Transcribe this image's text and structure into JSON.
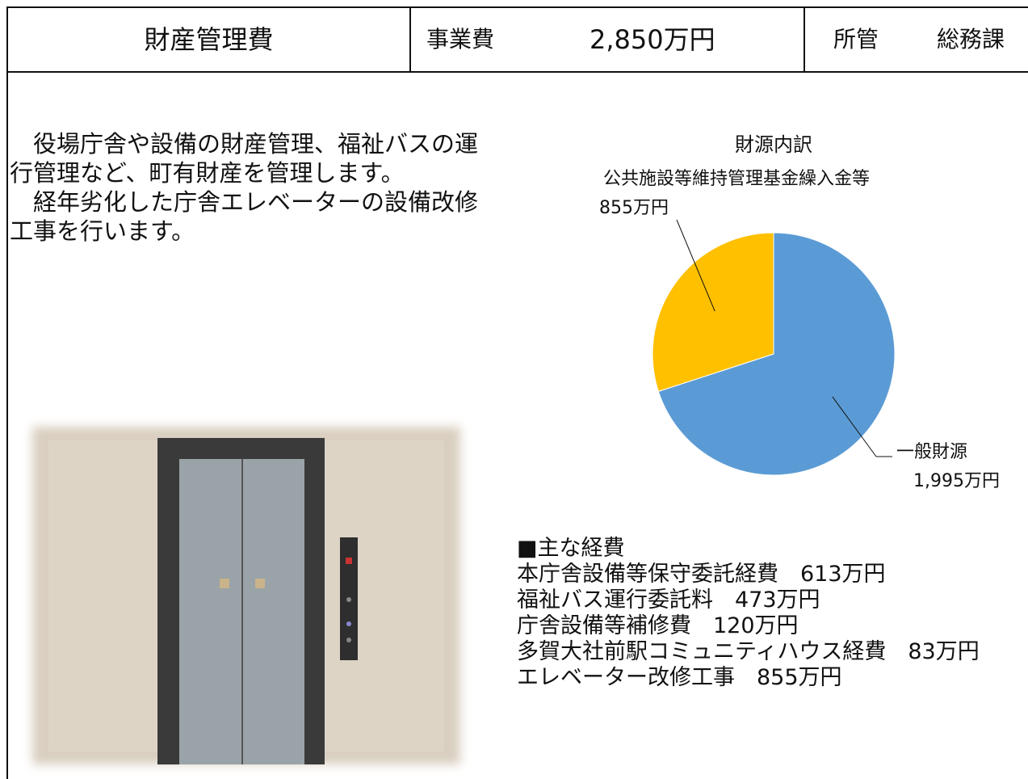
{
  "header": {
    "title": "財産管理費",
    "cost_label": "事業費",
    "cost": "2,850万円",
    "dept_label": "所管",
    "dept": "総務課"
  },
  "description": [
    "役場庁舎や設備の財産管理、福祉バスの運行管理など、町有財産を管理します。",
    "経年劣化した庁舎エレベーターの設備改修工事を行います。"
  ],
  "chart_data": {
    "type": "pie",
    "title": "財源内訳",
    "categories": [
      "一般財源",
      "公共施設等維持管理基金繰入金等"
    ],
    "values": [
      1995,
      855
    ],
    "value_labels": [
      "1,995万円",
      "855万円"
    ],
    "colors": [
      "#5b9bd5",
      "#ffc000"
    ]
  },
  "expenses": {
    "heading": "■主な経費",
    "items": [
      "本庁舎設備等保守委託経費　613万円",
      "福祉バス運行委託料　473万円",
      "庁舎設備等補修費　120万円",
      "多賀大社前駅コミュニティハウス経費　83万円",
      "エレベーター改修工事　855万円"
    ]
  }
}
